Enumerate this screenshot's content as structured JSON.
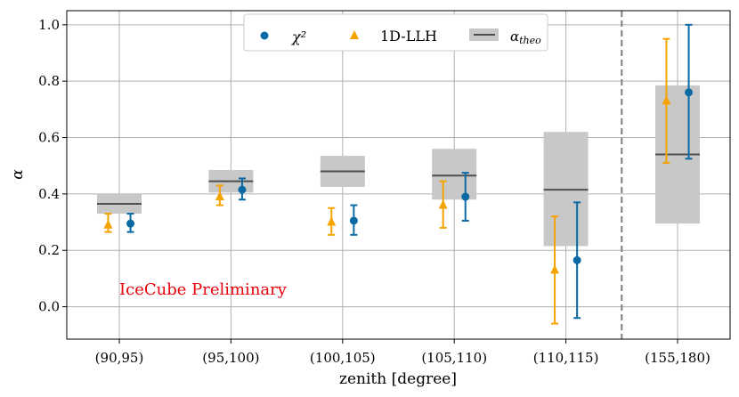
{
  "chart_data": {
    "type": "scatter",
    "xlabel": "zenith [degree]",
    "ylabel": "α",
    "ylim": [
      -0.115,
      1.05
    ],
    "yticks": [
      "0.0",
      "0.2",
      "0.4",
      "0.6",
      "0.8",
      "1.0"
    ],
    "ytick_values": [
      0.0,
      0.2,
      0.4,
      0.6,
      0.8,
      1.0
    ],
    "categories": [
      "(90,95)",
      "(95,100)",
      "(100,105)",
      "(105,110)",
      "(110,115)",
      "(155,180)"
    ],
    "grid": true,
    "legend_position": "top-center",
    "divider_after_category": 4,
    "annotation": {
      "text": "IceCube Preliminary",
      "color": "#e8000b"
    },
    "series": [
      {
        "name": "1D-LLH",
        "marker": "triangle",
        "color": "#f5a300",
        "offset": -0.1,
        "values": [
          0.29,
          0.39,
          0.3,
          0.36,
          0.13,
          0.73
        ],
        "err_low": [
          0.265,
          0.36,
          0.255,
          0.28,
          -0.06,
          0.51
        ],
        "err_high": [
          0.33,
          0.43,
          0.35,
          0.445,
          0.32,
          0.95
        ]
      },
      {
        "name": "χ²",
        "marker": "circle",
        "color": "#0a6aa5",
        "offset": 0.1,
        "values": [
          0.295,
          0.415,
          0.305,
          0.39,
          0.165,
          0.76
        ],
        "err_low": [
          0.265,
          0.38,
          0.255,
          0.305,
          -0.04,
          0.525
        ],
        "err_high": [
          0.33,
          0.455,
          0.36,
          0.475,
          0.37,
          1.0
        ]
      }
    ],
    "theory": {
      "name": "αtheo",
      "line_color": "#4f4f4f",
      "box_color": "#c8c8c8",
      "values": [
        0.365,
        0.445,
        0.48,
        0.465,
        0.415,
        0.54
      ],
      "box_low": [
        0.33,
        0.405,
        0.425,
        0.38,
        0.215,
        0.295
      ],
      "box_high": [
        0.4,
        0.485,
        0.535,
        0.56,
        0.62,
        0.785
      ]
    }
  }
}
